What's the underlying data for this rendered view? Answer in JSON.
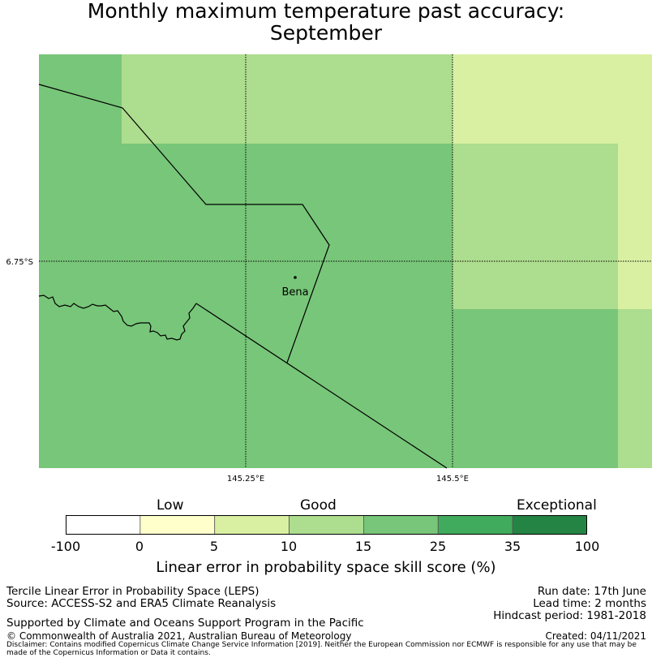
{
  "title": {
    "line1": "Monthly maximum temperature past accuracy:",
    "line2": "September"
  },
  "map": {
    "lat_labels": [
      "6.75°S"
    ],
    "lon_labels": [
      "145.25°E",
      "145.5°E"
    ],
    "place": "Bena"
  },
  "legend": {
    "categories": [
      "Low",
      "Good",
      "Exceptional"
    ],
    "ticks": [
      "-100",
      "0",
      "5",
      "10",
      "15",
      "25",
      "35",
      "100"
    ],
    "colors": [
      "#ffffff",
      "#ffffcc",
      "#d9f0a3",
      "#addd8e",
      "#78c679",
      "#41ab5d",
      "#238443"
    ],
    "title": "Linear error in probability space skill score (%)"
  },
  "footer": {
    "left_line1": "Tercile Linear Error in Probability Space (LEPS)",
    "left_line2": "Source: ACCESS-S2 and ERA5 Climate Reanalysis",
    "support": "Supported by Climate and Oceans Support Program in the Pacific",
    "copyright": "© Commonwealth of Australia 2021, Australian Bureau of Meteorology",
    "run_date": "Run date: 17th June",
    "lead_time": "Lead time: 2 months",
    "hindcast": "Hindcast period: 1981-2018",
    "created": "Created: 04/11/2021",
    "disclaimer": "Disclaimer: Contains modified Copernicus Climate Change Service Information [2019]. Neither the European Commission nor ECMWF is responsible for any use that may be made of the Copernicus Information or Data it contains."
  }
}
